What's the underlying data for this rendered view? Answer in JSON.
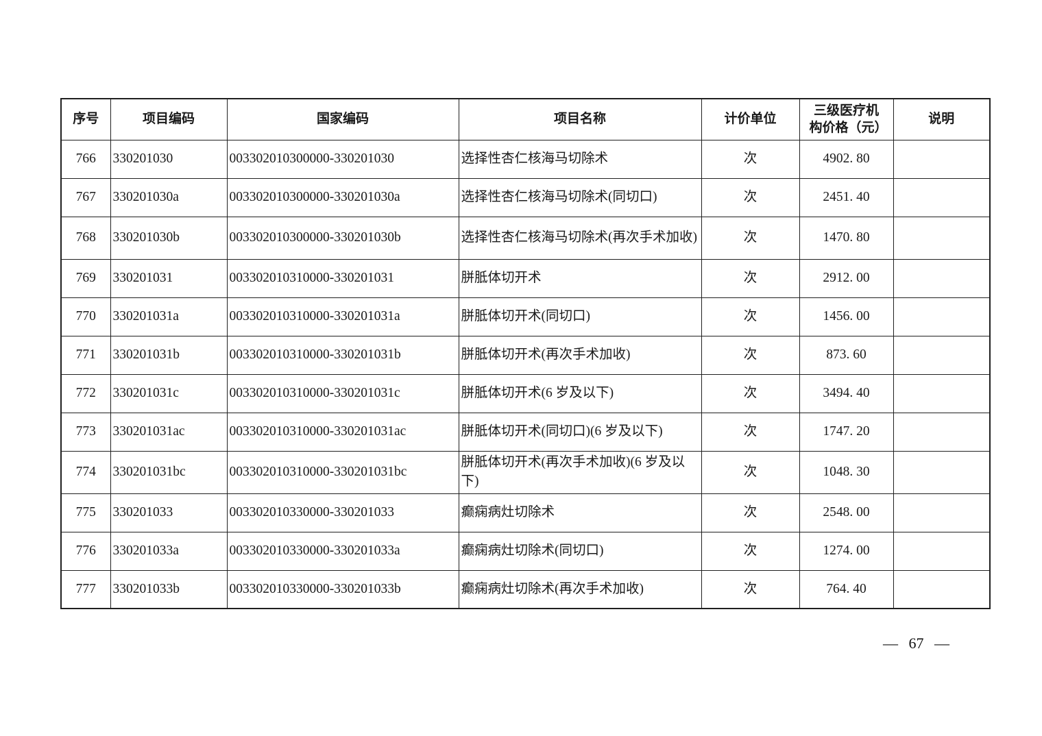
{
  "page": {
    "page_number_display": "— 67 —"
  },
  "table": {
    "headers": {
      "seq": "序号",
      "code": "项目编码",
      "national_code": "国家编码",
      "name": "项目名称",
      "unit": "计价单位",
      "price": "三级医疗机构价格（元）",
      "note": "说明"
    },
    "rows": [
      {
        "seq": "766",
        "code": "330201030",
        "national_code": "003302010300000-330201030",
        "name": "选择性杏仁核海马切除术",
        "unit": "次",
        "price": "4902. 80",
        "note": ""
      },
      {
        "seq": "767",
        "code": "330201030a",
        "national_code": "003302010300000-330201030a",
        "name": "选择性杏仁核海马切除术(同切口)",
        "unit": "次",
        "price": "2451. 40",
        "note": ""
      },
      {
        "seq": "768",
        "code": "330201030b",
        "national_code": "003302010300000-330201030b",
        "name": "选择性杏仁核海马切除术(再次手术加收)",
        "unit": "次",
        "price": "1470. 80",
        "note": ""
      },
      {
        "seq": "769",
        "code": "330201031",
        "national_code": "003302010310000-330201031",
        "name": "胼胝体切开术",
        "unit": "次",
        "price": "2912. 00",
        "note": ""
      },
      {
        "seq": "770",
        "code": "330201031a",
        "national_code": "003302010310000-330201031a",
        "name": "胼胝体切开术(同切口)",
        "unit": "次",
        "price": "1456. 00",
        "note": ""
      },
      {
        "seq": "771",
        "code": "330201031b",
        "national_code": "003302010310000-330201031b",
        "name": "胼胝体切开术(再次手术加收)",
        "unit": "次",
        "price": "873. 60",
        "note": ""
      },
      {
        "seq": "772",
        "code": "330201031c",
        "national_code": "003302010310000-330201031c",
        "name": "胼胝体切开术(6 岁及以下)",
        "unit": "次",
        "price": "3494. 40",
        "note": ""
      },
      {
        "seq": "773",
        "code": "330201031ac",
        "national_code": "003302010310000-330201031ac",
        "name": "胼胝体切开术(同切口)(6 岁及以下)",
        "unit": "次",
        "price": "1747. 20",
        "note": ""
      },
      {
        "seq": "774",
        "code": "330201031bc",
        "national_code": "003302010310000-330201031bc",
        "name": "胼胝体切开术(再次手术加收)(6 岁及以下)",
        "unit": "次",
        "price": "1048. 30",
        "note": ""
      },
      {
        "seq": "775",
        "code": "330201033",
        "national_code": "003302010330000-330201033",
        "name": "癫痫病灶切除术",
        "unit": "次",
        "price": "2548. 00",
        "note": ""
      },
      {
        "seq": "776",
        "code": "330201033a",
        "national_code": "003302010330000-330201033a",
        "name": "癫痫病灶切除术(同切口)",
        "unit": "次",
        "price": "1274. 00",
        "note": ""
      },
      {
        "seq": "777",
        "code": "330201033b",
        "national_code": "003302010330000-330201033b",
        "name": "癫痫病灶切除术(再次手术加收)",
        "unit": "次",
        "price": "764. 40",
        "note": ""
      }
    ],
    "tall_rows": [
      "768",
      "774"
    ]
  }
}
